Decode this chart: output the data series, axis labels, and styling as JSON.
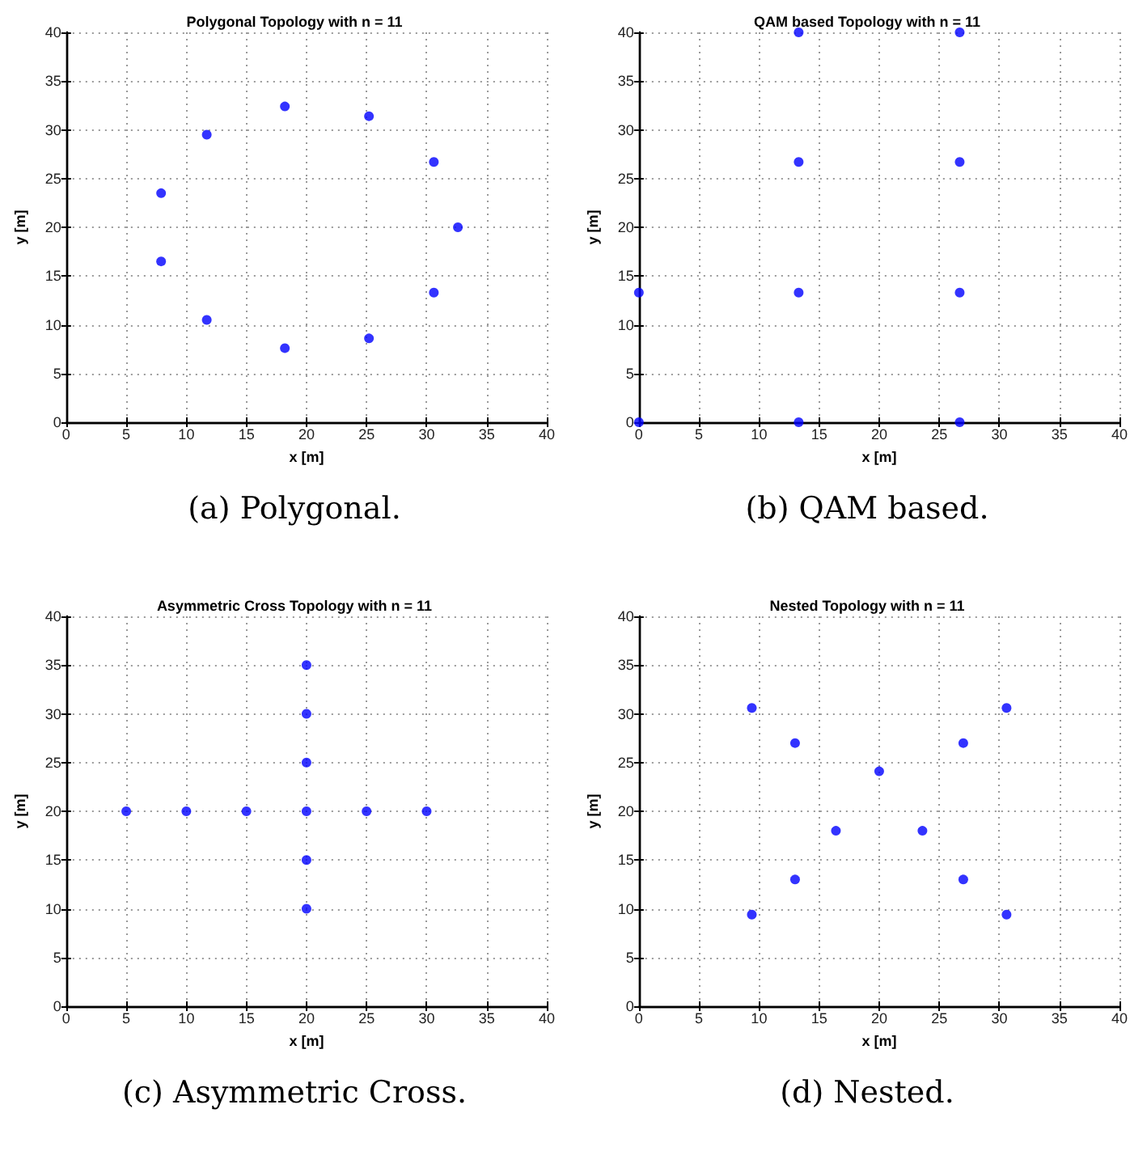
{
  "chart_data": [
    {
      "type": "scatter",
      "title": "Polygonal Topology with n = 11",
      "xlabel": "x [m]",
      "ylabel": "y [m]",
      "annotations": [
        "(a) Polygonal."
      ],
      "marker": "circle",
      "grid": true,
      "xlim": [
        0,
        40
      ],
      "ylim": [
        0,
        40
      ],
      "xticks": [
        0,
        5,
        10,
        15,
        20,
        25,
        30,
        35,
        40
      ],
      "yticks": [
        0,
        5,
        10,
        15,
        20,
        25,
        30,
        35,
        40
      ],
      "series": [
        {
          "color": "#0000ff",
          "x": [
            18.2,
            25.2,
            30.6,
            32.6,
            30.6,
            25.2,
            18.2,
            11.7,
            7.9,
            7.9,
            11.7
          ],
          "values": [
            32.4,
            31.4,
            26.7,
            20,
            13.3,
            8.6,
            7.6,
            10.5,
            16.5,
            23.5,
            29.5
          ]
        }
      ]
    },
    {
      "type": "scatter",
      "title": "QAM based Topology with n = 11",
      "xlabel": "x [m]",
      "ylabel": "y [m]",
      "annotations": [
        "(b) QAM based."
      ],
      "marker": "circle",
      "grid": true,
      "xlim": [
        0,
        40
      ],
      "ylim": [
        0,
        40
      ],
      "xticks": [
        0,
        5,
        10,
        15,
        20,
        25,
        30,
        35,
        40
      ],
      "yticks": [
        0,
        5,
        10,
        15,
        20,
        25,
        30,
        35,
        40
      ],
      "series": [
        {
          "color": "#0000ff",
          "x": [
            0,
            13.3,
            26.7,
            0,
            13.3,
            26.7,
            13.3,
            26.7,
            13.3,
            26.7
          ],
          "values": [
            0,
            0,
            0,
            13.3,
            13.3,
            13.3,
            26.7,
            26.7,
            40,
            40
          ]
        }
      ]
    },
    {
      "type": "scatter",
      "title": "Asymmetric Cross Topology with n = 11",
      "xlabel": "x [m]",
      "ylabel": "y [m]",
      "annotations": [
        "(c) Asymmetric Cross."
      ],
      "marker": "circle",
      "grid": true,
      "xlim": [
        0,
        40
      ],
      "ylim": [
        0,
        40
      ],
      "xticks": [
        0,
        5,
        10,
        15,
        20,
        25,
        30,
        35,
        40
      ],
      "yticks": [
        0,
        5,
        10,
        15,
        20,
        25,
        30,
        35,
        40
      ],
      "series": [
        {
          "color": "#0000ff",
          "x": [
            5,
            10,
            15,
            20,
            25,
            30,
            20,
            20,
            20,
            20,
            20
          ],
          "values": [
            20,
            20,
            20,
            20,
            20,
            20,
            35,
            30,
            25,
            15,
            10
          ]
        }
      ]
    },
    {
      "type": "scatter",
      "title": "Nested Topology with n = 11",
      "xlabel": "x [m]",
      "ylabel": "y [m]",
      "annotations": [
        "(d) Nested."
      ],
      "marker": "circle",
      "grid": true,
      "xlim": [
        0,
        40
      ],
      "ylim": [
        0,
        40
      ],
      "xticks": [
        0,
        5,
        10,
        15,
        20,
        25,
        30,
        35,
        40
      ],
      "yticks": [
        0,
        5,
        10,
        15,
        20,
        25,
        30,
        35,
        40
      ],
      "series": [
        {
          "color": "#0000ff",
          "x": [
            9.4,
            13,
            20,
            27,
            30.6,
            16.4,
            23.6,
            13,
            27,
            9.4,
            30.6
          ],
          "values": [
            30.6,
            27,
            24.1,
            27,
            30.6,
            18,
            18,
            13,
            13,
            9.4,
            9.4
          ]
        }
      ]
    }
  ]
}
